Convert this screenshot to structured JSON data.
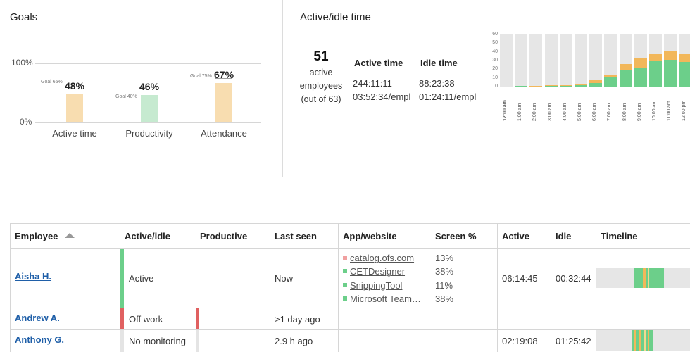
{
  "goals": {
    "title": "Goals",
    "y_top": "100%",
    "y_bottom": "0%",
    "bars": [
      {
        "label": "Active time",
        "value": 48,
        "pct_text": "48%",
        "goal": 65,
        "goal_text": "Goal 65%",
        "color": "#f8ddb0"
      },
      {
        "label": "Productivity",
        "value": 46,
        "pct_text": "46%",
        "goal": 40,
        "goal_text": "Goal 40%",
        "color": "#c6ead0"
      },
      {
        "label": "Attendance",
        "value": 67,
        "pct_text": "67%",
        "goal": 75,
        "goal_text": "Goal 75%",
        "color": "#f8ddb0"
      }
    ]
  },
  "active_idle": {
    "title": "Active/idle time",
    "count": "51",
    "count_line1": "active",
    "count_line2": "employees",
    "count_line3": "(out of 63)",
    "active_head": "Active time",
    "idle_head": "Idle time",
    "active_total": "244:11:11",
    "active_per": "03:52:34/empl",
    "idle_total": "88:23:38",
    "idle_per": "01:24:11/empl"
  },
  "hourly_chart": {
    "y_ticks": [
      "60",
      "50",
      "40",
      "30",
      "20",
      "10",
      "0"
    ],
    "ymax": 60,
    "hours": [
      "12:00 am",
      "1:00 am",
      "2:00 am",
      "3:00 am",
      "4:00 am",
      "5:00 am",
      "6:00 am",
      "7:00 am",
      "8:00 am",
      "9:00 am",
      "10:00 am",
      "11:00 am",
      "12:00 pm"
    ],
    "active": [
      0,
      1,
      0,
      1,
      1,
      2,
      4,
      11,
      19,
      22,
      29,
      31,
      28
    ],
    "idle": [
      0,
      0,
      1,
      1,
      1,
      1,
      3,
      3,
      7,
      11,
      9,
      10,
      9
    ],
    "active_color": "#6ccf8a",
    "idle_color": "#f2b75a"
  },
  "table": {
    "headers": {
      "employee": "Employee",
      "active_idle": "Active/idle",
      "productive": "Productive",
      "last_seen": "Last seen",
      "app": "App/website",
      "screen": "Screen %",
      "active": "Active",
      "idle": "Idle",
      "timeline": "Timeline"
    },
    "rows": [
      {
        "name": "Aisha H.",
        "state": "Active",
        "state_color": "#6ccf8a",
        "last_seen": "Now",
        "apps": [
          {
            "name": "catalog.ofs.com",
            "pct": "13%",
            "color": "#f0a0a0"
          },
          {
            "name": "CETDesigner",
            "pct": "38%",
            "color": "#6ccf8a"
          },
          {
            "name": "SnippingTool",
            "pct": "11%",
            "color": "#6ccf8a"
          },
          {
            "name": "Microsoft Team…",
            "pct": "38%",
            "color": "#6ccf8a"
          }
        ],
        "active": "06:14:45",
        "idle": "00:32:44"
      },
      {
        "name": "Andrew A.",
        "state": "Off work",
        "state_color": "#e06060",
        "productive_color": "#e06060",
        "last_seen": ">1 day ago",
        "active": "",
        "idle": ""
      },
      {
        "name": "Anthony G.",
        "state": "No monitoring",
        "state_color": "#e4e4e4",
        "productive_color": "#e4e4e4",
        "last_seen": "2.9 h ago",
        "active": "02:19:08",
        "idle": "01:25:42"
      }
    ]
  }
}
